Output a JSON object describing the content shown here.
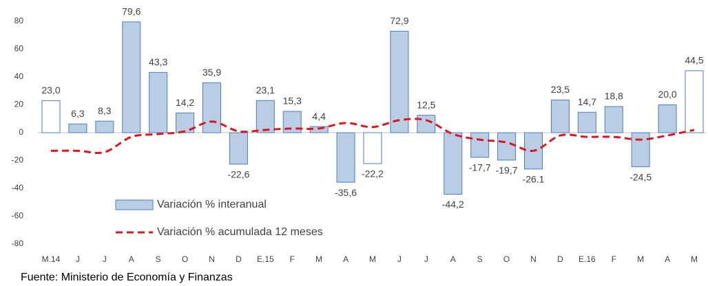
{
  "chart_data": {
    "type": "bar",
    "categories": [
      "M.14",
      "J",
      "J",
      "A",
      "S",
      "O",
      "N",
      "D",
      "E.15",
      "F",
      "M",
      "A",
      "M",
      "J",
      "J",
      "A",
      "S",
      "O",
      "N",
      "D",
      "E.16",
      "F",
      "M",
      "A",
      "M"
    ],
    "series": [
      {
        "name": "Variación % interanual",
        "type": "bar",
        "color": "#b9cde5",
        "edge_color": "#4a7ebb",
        "fills": [
          "#ffffff",
          "#b9cde5",
          "#b9cde5",
          "#b9cde5",
          "#b9cde5",
          "#b9cde5",
          "#b9cde5",
          "#b9cde5",
          "#b9cde5",
          "#b9cde5",
          "#b9cde5",
          "#b9cde5",
          "#ffffff",
          "#b9cde5",
          "#b9cde5",
          "#b9cde5",
          "#b9cde5",
          "#b9cde5",
          "#b9cde5",
          "#b9cde5",
          "#b9cde5",
          "#b9cde5",
          "#b9cde5",
          "#b9cde5",
          "#ffffff"
        ],
        "values": [
          23.0,
          6.3,
          8.3,
          79.6,
          43.3,
          14.2,
          35.9,
          -22.6,
          23.1,
          15.3,
          4.4,
          -35.6,
          -22.2,
          72.9,
          12.5,
          -44.2,
          -17.7,
          -19.7,
          -26.1,
          23.5,
          14.7,
          18.8,
          -24.5,
          20.0,
          44.5
        ],
        "value_labels": [
          "23,0",
          "6,3",
          "8,3",
          "79,6",
          "43,3",
          "14,2",
          "35,9",
          "-22,6",
          "23,1",
          "15,3",
          "4,4",
          "-35,6",
          "-22,2",
          "72,9",
          "12,5",
          "-44,2",
          "-17,7",
          "-19,7",
          "-26.1",
          "23,5",
          "14,7",
          "18,8",
          "-24,5",
          "20,0",
          "44,5"
        ]
      },
      {
        "name": "Variación % acumulada 12 meses",
        "type": "line",
        "color": "#e3131b",
        "dashed": true,
        "values": [
          -13,
          -13,
          -14,
          -3,
          -1,
          1,
          8,
          1,
          2,
          3,
          3,
          7,
          4,
          9,
          9,
          -1,
          -5,
          -7,
          -13,
          -2,
          -3,
          -3,
          -5,
          -2,
          2
        ]
      }
    ],
    "ylim": [
      -80,
      80
    ],
    "yticks": [
      -80,
      -60,
      -40,
      -20,
      0,
      20,
      40,
      60,
      80
    ],
    "source": "Fuente: Ministerio de Economía y Finanzas"
  }
}
